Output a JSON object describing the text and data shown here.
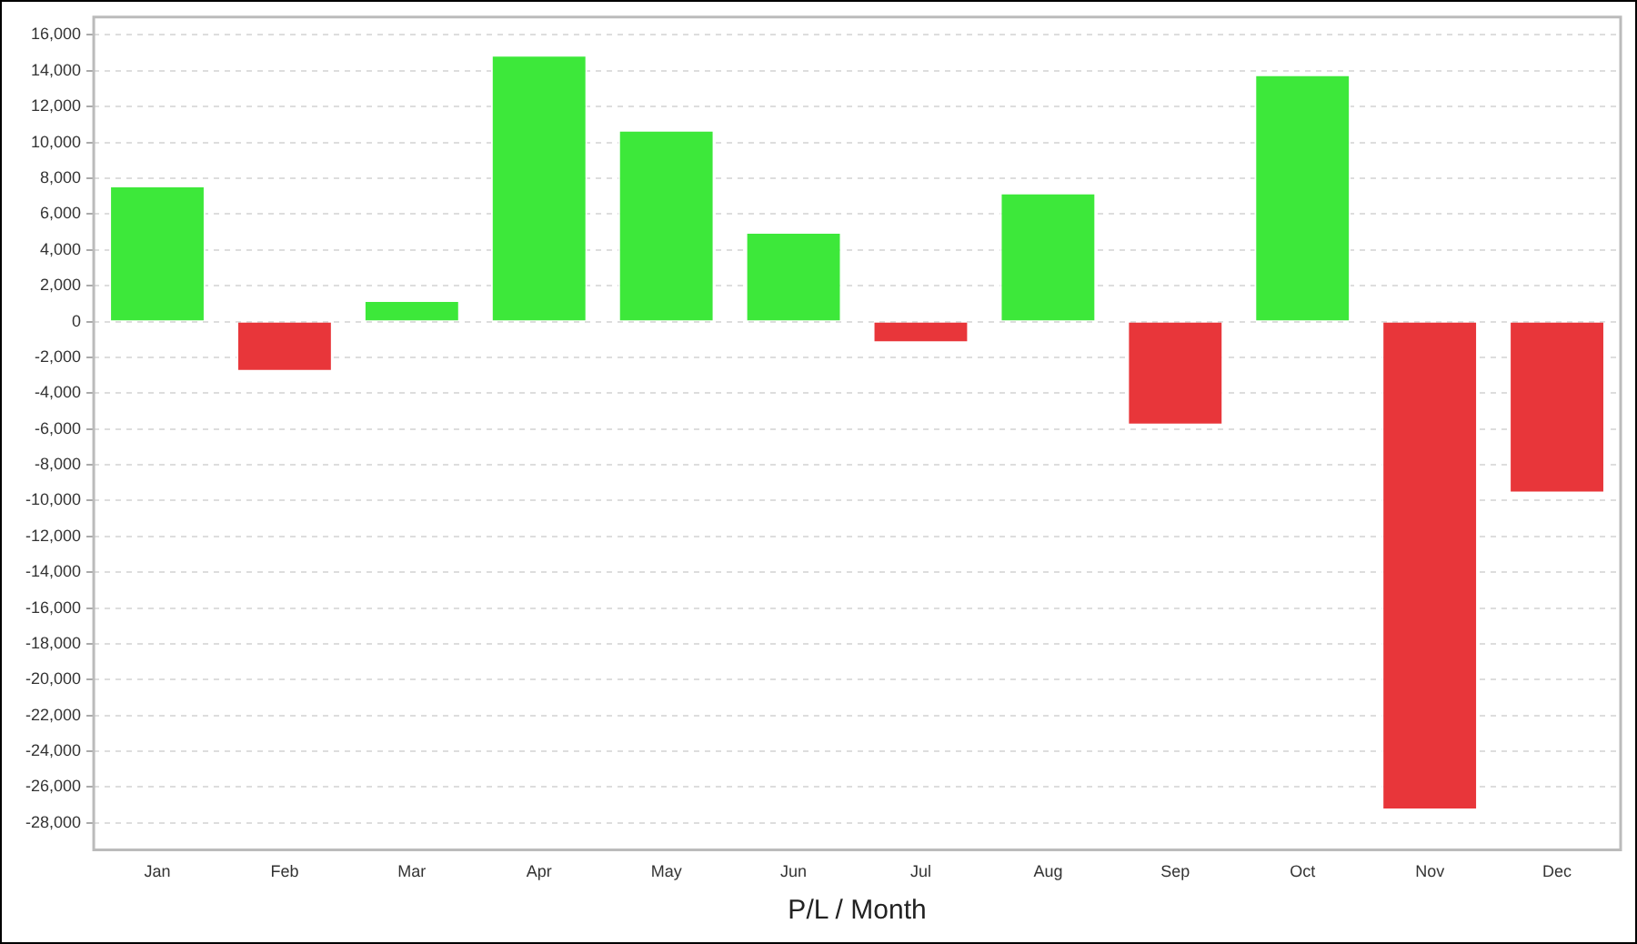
{
  "chart_data": {
    "type": "bar",
    "xlabel": "P/L / Month",
    "categories": [
      "Jan",
      "Feb",
      "Mar",
      "Apr",
      "May",
      "Jun",
      "Jul",
      "Aug",
      "Sep",
      "Oct",
      "Nov",
      "Dec"
    ],
    "values": [
      7600,
      -2800,
      1200,
      14900,
      10700,
      5000,
      -1200,
      7200,
      -5800,
      13800,
      -27300,
      -9600
    ],
    "colors": [
      "#3de83a",
      "#e8363a",
      "#3de83a",
      "#3de83a",
      "#3de83a",
      "#3de83a",
      "#e8363a",
      "#3de83a",
      "#e8363a",
      "#3de83a",
      "#e8363a",
      "#e8363a"
    ],
    "ylim": [
      -29500,
      17000
    ],
    "yticks": [
      {
        "value": 16000,
        "label": "16,000"
      },
      {
        "value": 14000,
        "label": "14,000"
      },
      {
        "value": 12000,
        "label": "12,000"
      },
      {
        "value": 10000,
        "label": "10,000"
      },
      {
        "value": 8000,
        "label": "8,000"
      },
      {
        "value": 6000,
        "label": "6,000"
      },
      {
        "value": 4000,
        "label": "4,000"
      },
      {
        "value": 2000,
        "label": "2,000"
      },
      {
        "value": 0,
        "label": "0"
      },
      {
        "value": -2000,
        "label": "-2,000"
      },
      {
        "value": -4000,
        "label": "-4,000"
      },
      {
        "value": -6000,
        "label": "-6,000"
      },
      {
        "value": -8000,
        "label": "-8,000"
      },
      {
        "value": -10000,
        "label": "-10,000"
      },
      {
        "value": -12000,
        "label": "-12,000"
      },
      {
        "value": -14000,
        "label": "-14,000"
      },
      {
        "value": -16000,
        "label": "-16,000"
      },
      {
        "value": -18000,
        "label": "-18,000"
      },
      {
        "value": -20000,
        "label": "-20,000"
      },
      {
        "value": -22000,
        "label": "-22,000"
      },
      {
        "value": -24000,
        "label": "-24,000"
      },
      {
        "value": -26000,
        "label": "-26,000"
      },
      {
        "value": -28000,
        "label": "-28,000"
      }
    ],
    "grid": "y",
    "legend": false
  }
}
